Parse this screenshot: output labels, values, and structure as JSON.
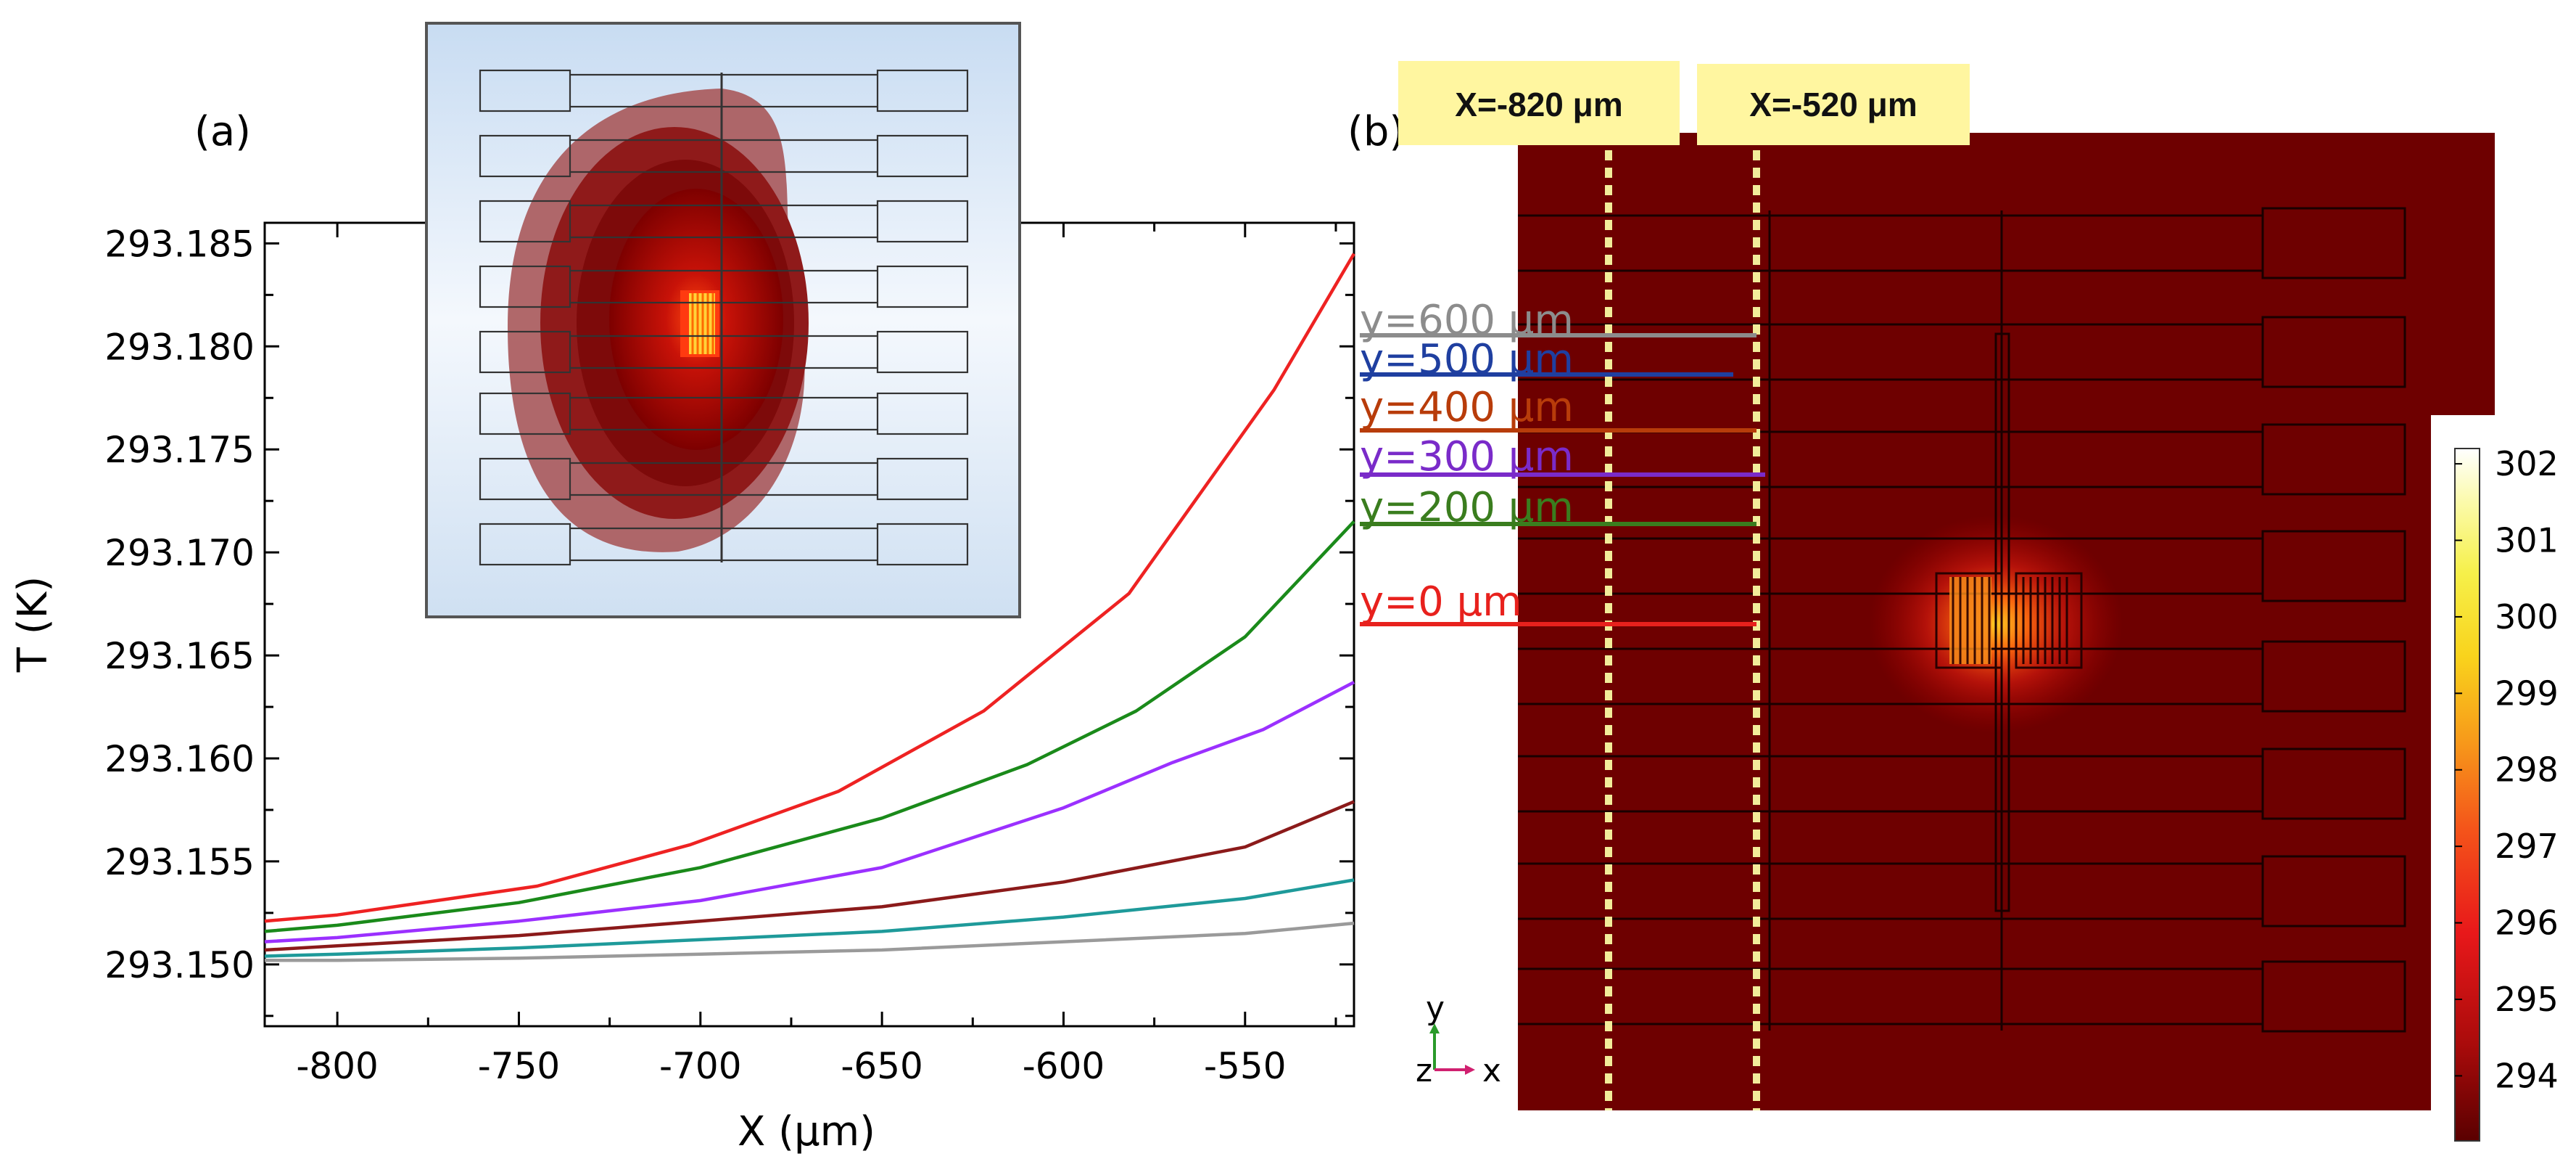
{
  "panel_a": {
    "label": "(a)",
    "chart_data": {
      "type": "line",
      "title": "",
      "xlabel": "X (μm)",
      "ylabel": "T (K)",
      "xlim": [
        -820,
        -520
      ],
      "ylim": [
        293.147,
        293.186
      ],
      "xticks": [
        -800,
        -750,
        -700,
        -650,
        -600,
        -550
      ],
      "xtick_labels": [
        "-800",
        "-750",
        "-700",
        "-650",
        "-600",
        "-550"
      ],
      "yticks": [
        293.15,
        293.155,
        293.16,
        293.165,
        293.17,
        293.175,
        293.18,
        293.185
      ],
      "ytick_labels": [
        "293.150",
        "293.155",
        "293.160",
        "293.165",
        "293.170",
        "293.175",
        "293.180",
        "293.185"
      ],
      "grid": false,
      "series": [
        {
          "name": "y=0 μm",
          "color": "#ee2222",
          "x": [
            -820,
            -800,
            -745,
            -703,
            -662,
            -622,
            -582,
            -542,
            -520
          ],
          "y": [
            293.1521,
            293.1524,
            293.1538,
            293.1558,
            293.1584,
            293.1623,
            293.168,
            293.1779,
            293.1845
          ]
        },
        {
          "name": "y=200 μm",
          "color": "#1a8a1a",
          "x": [
            -820,
            -800,
            -750,
            -700,
            -650,
            -610,
            -580,
            -550,
            -520
          ],
          "y": [
            293.1516,
            293.1519,
            293.153,
            293.1547,
            293.1571,
            293.1597,
            293.1623,
            293.1659,
            293.1715
          ]
        },
        {
          "name": "y=300 μm",
          "color": "#9b30ff",
          "x": [
            -820,
            -800,
            -750,
            -700,
            -650,
            -600,
            -570,
            -545,
            -520
          ],
          "y": [
            293.1511,
            293.1513,
            293.1521,
            293.1531,
            293.1547,
            293.1576,
            293.1598,
            293.1614,
            293.1637
          ]
        },
        {
          "name": "y=400 μm",
          "color": "#8b1a1a",
          "x": [
            -820,
            -800,
            -750,
            -700,
            -650,
            -600,
            -550,
            -520
          ],
          "y": [
            293.1507,
            293.1509,
            293.1514,
            293.1521,
            293.1528,
            293.154,
            293.1557,
            293.1579
          ]
        },
        {
          "name": "y=500 μm",
          "color": "#1e9a9a",
          "x": [
            -820,
            -800,
            -750,
            -700,
            -650,
            -600,
            -550,
            -520
          ],
          "y": [
            293.1504,
            293.1505,
            293.1508,
            293.1512,
            293.1516,
            293.1523,
            293.1532,
            293.1541
          ]
        },
        {
          "name": "y=600 μm",
          "color": "#9a9a9a",
          "x": [
            -820,
            -800,
            -750,
            -700,
            -650,
            -600,
            -550,
            -520
          ],
          "y": [
            293.1502,
            293.1502,
            293.1503,
            293.1505,
            293.1507,
            293.1511,
            293.1515,
            293.152
          ]
        }
      ]
    }
  },
  "panel_b": {
    "label": "(b)",
    "x_markers": [
      {
        "label": "X=-820 μm"
      },
      {
        "label": "X=-520 μm"
      }
    ],
    "y_lines": [
      {
        "label": "y=600 μm",
        "color": "#8c8c8c"
      },
      {
        "label": "y=500 μm",
        "color": "#1f3fa0"
      },
      {
        "label": "y=400 μm",
        "color": "#b83c0a"
      },
      {
        "label": "y=300 μm",
        "color": "#7a2bc9"
      },
      {
        "label": "y=200 μm",
        "color": "#3a7d1e"
      },
      {
        "label": "y=0 μm",
        "color": "#e8211d"
      }
    ],
    "axis_triad": {
      "y": "y",
      "z": "z",
      "x": "x"
    },
    "colorbar": {
      "ticks": [
        302,
        301,
        300,
        299,
        298,
        297,
        296,
        295,
        294
      ],
      "min": 293.15,
      "max": 302.2
    }
  },
  "colors": {
    "substrate": "#6e0000",
    "marker_box": "#fff6a0",
    "marker_line": "#f2ec9a"
  }
}
